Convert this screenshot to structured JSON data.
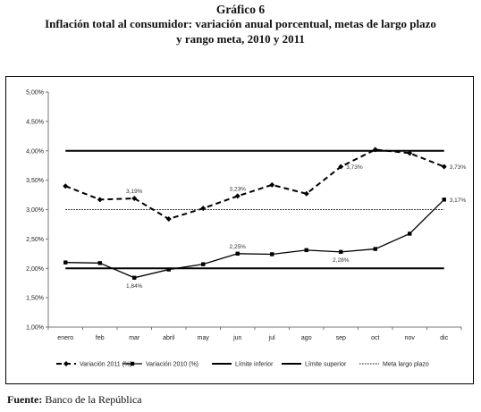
{
  "figure": {
    "number": "Gráfico 6",
    "title_line1": "Inflación total al consumidor: variación anual porcentual,  metas de largo plazo",
    "title_line2": "y rango meta, 2010 y 2011"
  },
  "source": {
    "label": "Fuente:",
    "text": "Banco de la República"
  },
  "chart_data": {
    "type": "line",
    "categories": [
      "enero",
      "feb",
      "mar",
      "abril",
      "may",
      "jun",
      "jul",
      "ago",
      "sep",
      "oct",
      "nov",
      "dic"
    ],
    "ylim": [
      1.0,
      5.0
    ],
    "yticks": [
      "1,00%",
      "1,50%",
      "2,00%",
      "2,50%",
      "3,00%",
      "3,50%",
      "4,00%",
      "4,50%",
      "5,00%"
    ],
    "ytick_values": [
      1.0,
      1.5,
      2.0,
      2.5,
      3.0,
      3.5,
      4.0,
      4.5,
      5.0
    ],
    "grid": false,
    "legend_position": "bottom",
    "series": [
      {
        "name": "Variación 2011 (%)",
        "style": "dashed-diamond",
        "color": "#000000",
        "values": [
          3.4,
          3.17,
          3.19,
          2.84,
          3.02,
          3.23,
          3.42,
          3.27,
          3.73,
          4.02,
          3.96,
          3.73
        ]
      },
      {
        "name": "Variación 2010 (%)",
        "style": "solid-square",
        "color": "#000000",
        "values": [
          2.1,
          2.09,
          1.84,
          1.98,
          2.07,
          2.25,
          2.24,
          2.31,
          2.28,
          2.33,
          2.59,
          3.17
        ]
      },
      {
        "name": "Límite inferior",
        "style": "solid-thick",
        "color": "#000000",
        "values": [
          2.0,
          2.0,
          2.0,
          2.0,
          2.0,
          2.0,
          2.0,
          2.0,
          2.0,
          2.0,
          2.0,
          2.0
        ]
      },
      {
        "name": "Límite superior",
        "style": "solid-thick",
        "color": "#000000",
        "values": [
          4.0,
          4.0,
          4.0,
          4.0,
          4.0,
          4.0,
          4.0,
          4.0,
          4.0,
          4.0,
          4.0,
          4.0
        ]
      },
      {
        "name": "Meta largo plazo",
        "style": "dotted",
        "color": "#000000",
        "values": [
          3.0,
          3.0,
          3.0,
          3.0,
          3.0,
          3.0,
          3.0,
          3.0,
          3.0,
          3.0,
          3.0,
          3.0
        ]
      }
    ],
    "annotations": [
      {
        "series": 0,
        "index": 2,
        "text": "3,19%",
        "pos": "above"
      },
      {
        "series": 0,
        "index": 5,
        "text": "3,23%",
        "pos": "above"
      },
      {
        "series": 0,
        "index": 8,
        "text": "3,73%",
        "pos": "right"
      },
      {
        "series": 0,
        "index": 11,
        "text": "3,73%",
        "pos": "right"
      },
      {
        "series": 1,
        "index": 2,
        "text": "1,84%",
        "pos": "below"
      },
      {
        "series": 1,
        "index": 5,
        "text": "2,25%",
        "pos": "above"
      },
      {
        "series": 1,
        "index": 8,
        "text": "2,28%",
        "pos": "below"
      },
      {
        "series": 1,
        "index": 11,
        "text": "3,17%",
        "pos": "right"
      }
    ]
  }
}
